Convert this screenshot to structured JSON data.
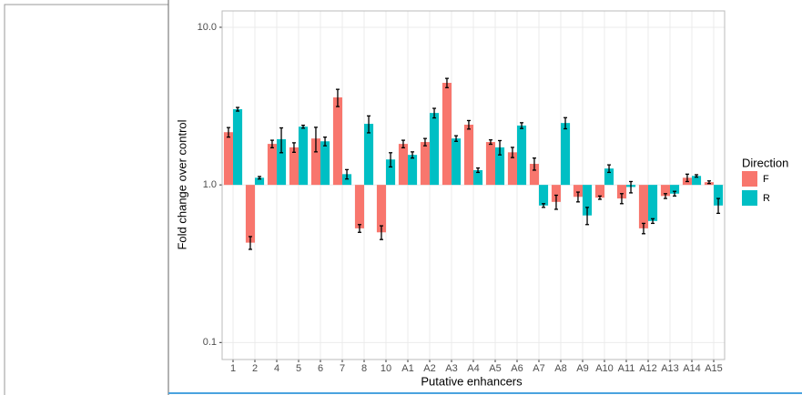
{
  "chart_data": {
    "type": "bar",
    "log_y": true,
    "x_label": "Putative enhancers",
    "y_label": "Fold change over control",
    "legend_title": "Direction",
    "legend": "right",
    "grid": true,
    "categories": [
      "1",
      "2",
      "4",
      "5",
      "6",
      "7",
      "8",
      "10",
      "A1",
      "A2",
      "A3",
      "A4",
      "A5",
      "A6",
      "A7",
      "A8",
      "A9",
      "A10",
      "A11",
      "A12",
      "A13",
      "A14",
      "A15"
    ],
    "series": [
      {
        "name": "F",
        "color": "#f8766d",
        "values": [
          2.16,
          0.43,
          1.82,
          1.73,
          1.97,
          3.59,
          0.53,
          0.5,
          1.82,
          1.87,
          4.44,
          2.41,
          1.87,
          1.61,
          1.36,
          0.78,
          0.84,
          0.83,
          0.82,
          0.53,
          0.85,
          1.11,
          1.04
        ],
        "errors": [
          0.15,
          0.04,
          0.1,
          0.12,
          0.35,
          0.45,
          0.03,
          0.05,
          0.1,
          0.1,
          0.3,
          0.15,
          0.06,
          0.12,
          0.12,
          0.08,
          0.06,
          0.02,
          0.06,
          0.04,
          0.03,
          0.06,
          0.02
        ]
      },
      {
        "name": "R",
        "color": "#00bfc4",
        "values": [
          3.02,
          1.11,
          1.95,
          2.34,
          1.89,
          1.17,
          2.44,
          1.45,
          1.55,
          2.86,
          1.97,
          1.24,
          1.73,
          2.38,
          0.74,
          2.47,
          0.64,
          1.27,
          0.97,
          0.59,
          0.88,
          1.14,
          0.74
        ],
        "errors": [
          0.08,
          0.02,
          0.35,
          0.05,
          0.12,
          0.08,
          0.3,
          0.15,
          0.07,
          0.2,
          0.08,
          0.04,
          0.18,
          0.1,
          0.02,
          0.2,
          0.08,
          0.07,
          0.08,
          0.02,
          0.03,
          0.02,
          0.08
        ]
      }
    ],
    "ylim": [
      0.078,
      12.7
    ],
    "yticks": [
      {
        "value": 10,
        "label": "10.0"
      },
      {
        "value": 1,
        "label": "1.0"
      },
      0.1
    ]
  }
}
